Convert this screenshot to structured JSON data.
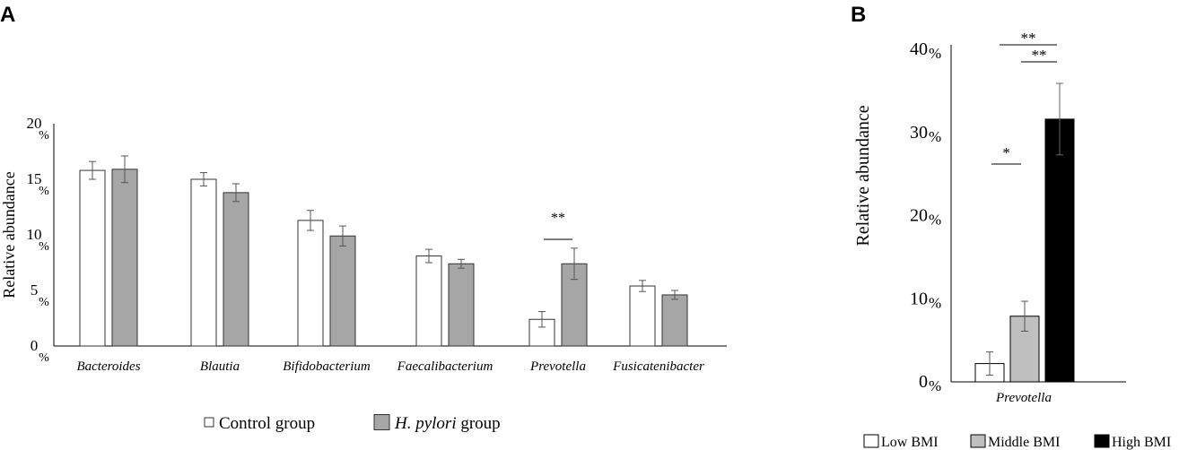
{
  "chart_data": [
    {
      "panel": "A",
      "type": "bar",
      "ylabel": "Relative abundance",
      "ylim": [
        0,
        20
      ],
      "yticks": [
        "0",
        "5",
        "10",
        "15",
        "20"
      ],
      "ytick_unit": "%",
      "categories": [
        "Bacteroides",
        "Blautia",
        "Bifidobacterium",
        "Faecalibacterium",
        "Prevotella",
        "Fusicatenibacter"
      ],
      "series": [
        {
          "name": "Control group",
          "color": "#ffffff",
          "values": [
            15.8,
            15.0,
            11.3,
            8.1,
            2.4,
            5.4
          ],
          "errors": [
            0.8,
            0.6,
            0.9,
            0.6,
            0.7,
            0.5
          ]
        },
        {
          "name": "H. pylori group",
          "name_italic": "H. pylori",
          "name_rest": " group",
          "color": "#a6a6a6",
          "values": [
            15.9,
            13.8,
            9.9,
            7.4,
            7.4,
            4.6
          ],
          "errors": [
            1.2,
            0.8,
            0.9,
            0.4,
            1.4,
            0.4
          ]
        }
      ],
      "annotations": [
        {
          "category": "Prevotella",
          "text": "**"
        }
      ],
      "legend": "bottom"
    },
    {
      "panel": "B",
      "type": "bar",
      "ylabel": "Relative abundance",
      "ylim": [
        0,
        40
      ],
      "yticks": [
        "0",
        "10",
        "20",
        "30",
        "40"
      ],
      "ytick_unit": "%",
      "categories": [
        "Prevotella"
      ],
      "series": [
        {
          "name": "Low BMI",
          "color": "#ffffff",
          "values": [
            2.2
          ],
          "errors": [
            1.4
          ]
        },
        {
          "name": "Middle BMI",
          "color": "#bfbfbf",
          "values": [
            7.9
          ],
          "errors": [
            1.8
          ]
        },
        {
          "name": "High BMI",
          "color": "#000000",
          "values": [
            31.6
          ],
          "errors": [
            4.3
          ]
        }
      ],
      "annotations": [
        {
          "from": 0,
          "to": 1,
          "text": "*"
        },
        {
          "from": 1,
          "to": 2,
          "text": "**"
        },
        {
          "from": 0,
          "to": 2,
          "text": "**"
        }
      ],
      "legend": "bottom"
    }
  ]
}
